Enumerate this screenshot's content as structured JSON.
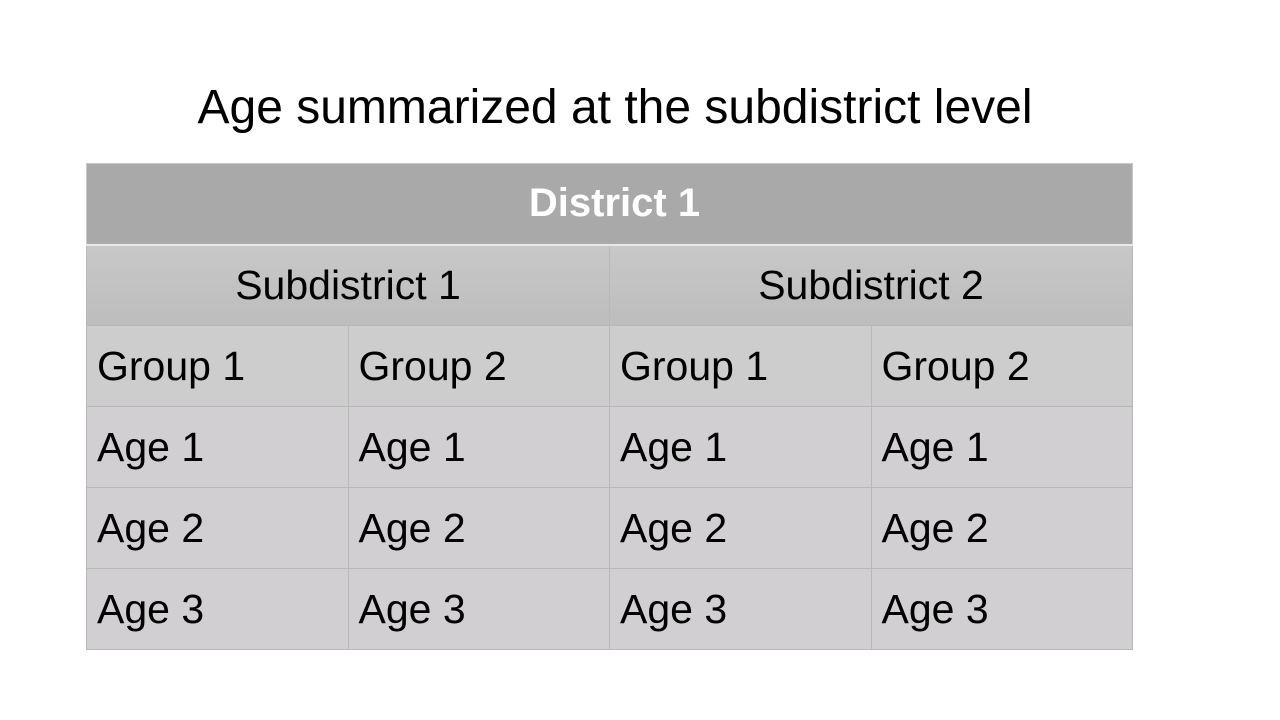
{
  "title": "Age summarized at the subdistrict level",
  "table": {
    "district": "District 1",
    "subdistricts": [
      "Subdistrict 1",
      "Subdistrict 2"
    ],
    "groups": [
      "Group 1",
      "Group 2",
      "Group 1",
      "Group 2"
    ],
    "rows": [
      [
        "Age 1",
        "Age 1",
        "Age 1",
        "Age 1"
      ],
      [
        "Age 2",
        "Age 2",
        "Age 2",
        "Age 2"
      ],
      [
        "Age 3",
        "Age 3",
        "Age 3",
        "Age 3"
      ]
    ]
  }
}
